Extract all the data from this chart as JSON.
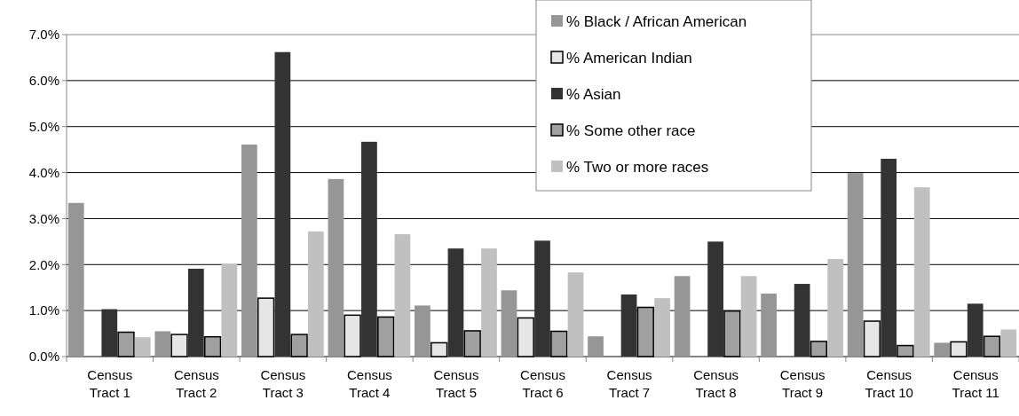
{
  "chart_data": {
    "type": "bar",
    "categories": [
      "Census Tract 1",
      "Census Tract 2",
      "Census Tract 3",
      "Census Tract 4",
      "Census Tract 5",
      "Census Tract 6",
      "Census Tract 7",
      "Census Tract 8",
      "Census Tract 9",
      "Census Tract 10",
      "Census Tract 11"
    ],
    "series": [
      {
        "name": "% Black / African American",
        "color": "#969696",
        "values": [
          3.34,
          0.55,
          4.61,
          3.86,
          1.11,
          1.44,
          0.44,
          1.75,
          1.37,
          3.99,
          0.3
        ]
      },
      {
        "name": "% American Indian",
        "color": "#e6e6e6",
        "values": [
          0,
          0.48,
          1.27,
          0.9,
          0.3,
          0.84,
          0,
          0,
          0,
          0.77,
          0.32
        ]
      },
      {
        "name": "% Asian",
        "color": "#333333",
        "values": [
          1.03,
          1.91,
          6.62,
          4.67,
          2.35,
          2.52,
          1.35,
          2.5,
          1.58,
          4.3,
          1.15
        ]
      },
      {
        "name": "% Some other race",
        "color": "#a0a0a0",
        "values": [
          0.53,
          0.43,
          0.48,
          0.86,
          0.56,
          0.55,
          1.07,
          0.99,
          0.33,
          0.24,
          0.44
        ]
      },
      {
        "name": "% Two or more races",
        "color": "#c0c0c0",
        "values": [
          0.42,
          2.01,
          2.72,
          2.66,
          2.35,
          1.83,
          1.27,
          1.75,
          2.12,
          3.68,
          0.59
        ]
      }
    ],
    "ylim": [
      0,
      7
    ],
    "yticks": [
      {
        "value": 0,
        "label": "0.0%"
      },
      {
        "value": 1,
        "label": "1.0%"
      },
      {
        "value": 2,
        "label": "2.0%"
      },
      {
        "value": 3,
        "label": "3.0%"
      },
      {
        "value": 4,
        "label": "4.0%"
      },
      {
        "value": 5,
        "label": "5.0%"
      },
      {
        "value": 6,
        "label": "6.0%"
      },
      {
        "value": 7,
        "label": "7.0%"
      }
    ],
    "grid": "y",
    "legend": "top right"
  }
}
